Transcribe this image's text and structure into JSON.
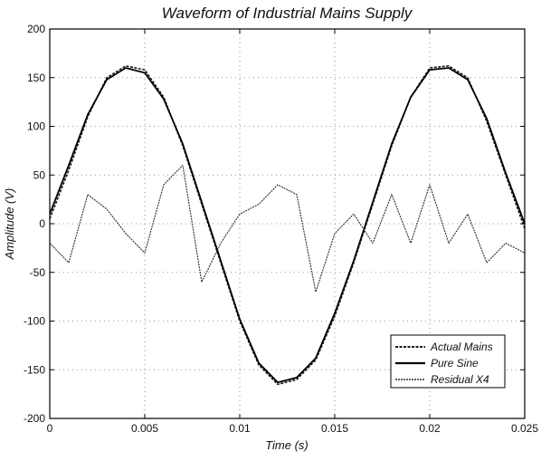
{
  "chart_data": {
    "type": "line",
    "title": "Waveform of Industrial Mains Supply",
    "xlabel": "Time (s)",
    "ylabel": "Amplitude (V)",
    "xlim": [
      0,
      0.025
    ],
    "ylim": [
      -200,
      200
    ],
    "grid": true,
    "legend_position": "bottom-right",
    "x_ticks": [
      0,
      0.005,
      0.01,
      0.015,
      0.02,
      0.025
    ],
    "x_tick_labels": [
      "0",
      "0.005",
      "0.01",
      "0.015",
      "0.02",
      "0.025"
    ],
    "y_ticks": [
      -200,
      -150,
      -100,
      -50,
      0,
      50,
      100,
      150,
      200
    ],
    "y_tick_labels": [
      "-200",
      "-150",
      "-100",
      "-50",
      "0",
      "50",
      "100",
      "150",
      "200"
    ],
    "series": [
      {
        "name": "Actual Mains",
        "color": "#1a1a1a",
        "x": [
          0,
          0.001,
          0.002,
          0.003,
          0.004,
          0.005,
          0.006,
          0.007,
          0.008,
          0.009,
          0.01,
          0.011,
          0.012,
          0.013,
          0.014,
          0.015,
          0.016,
          0.017,
          0.018,
          0.019,
          0.02,
          0.021,
          0.022,
          0.023,
          0.024,
          0.025
        ],
        "y": [
          5,
          55,
          110,
          150,
          162,
          158,
          130,
          80,
          20,
          -40,
          -100,
          -145,
          -165,
          -160,
          -140,
          -95,
          -40,
          20,
          80,
          130,
          160,
          162,
          150,
          105,
          50,
          -5
        ]
      },
      {
        "name": "Pure Sine",
        "color": "#000000",
        "x": [
          0,
          0.001,
          0.002,
          0.003,
          0.004,
          0.005,
          0.006,
          0.007,
          0.008,
          0.009,
          0.01,
          0.011,
          0.012,
          0.013,
          0.014,
          0.015,
          0.016,
          0.017,
          0.018,
          0.019,
          0.02,
          0.021,
          0.022,
          0.023,
          0.024,
          0.025
        ],
        "y": [
          10,
          60,
          112,
          148,
          160,
          155,
          128,
          82,
          22,
          -38,
          -98,
          -143,
          -163,
          -158,
          -138,
          -92,
          -38,
          22,
          82,
          130,
          158,
          160,
          148,
          108,
          52,
          0
        ]
      },
      {
        "name": "Residual X4",
        "color": "#2a2a2a",
        "x": [
          0,
          0.001,
          0.002,
          0.003,
          0.004,
          0.005,
          0.006,
          0.007,
          0.008,
          0.009,
          0.01,
          0.011,
          0.012,
          0.013,
          0.014,
          0.015,
          0.016,
          0.017,
          0.018,
          0.019,
          0.02,
          0.021,
          0.022,
          0.023,
          0.024,
          0.025
        ],
        "y": [
          -20,
          -40,
          30,
          15,
          -10,
          -30,
          40,
          60,
          -60,
          -20,
          10,
          20,
          40,
          30,
          -70,
          -10,
          10,
          -20,
          30,
          -20,
          40,
          -20,
          10,
          -40,
          -20,
          -30
        ]
      }
    ]
  }
}
